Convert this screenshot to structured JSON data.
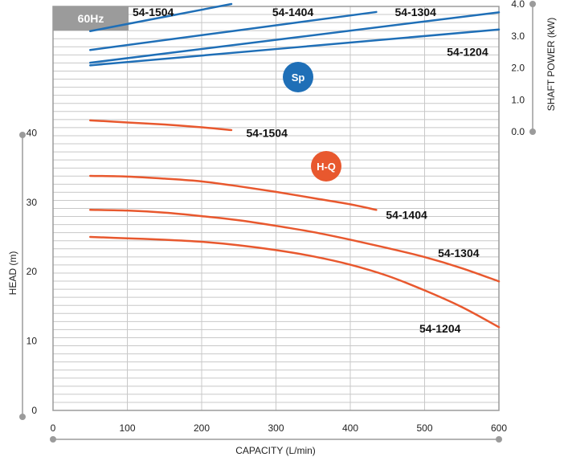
{
  "chart_data": {
    "type": "line",
    "frequency_label": "60Hz",
    "xlabel": "CAPACITY (L/min)",
    "ylabel": "HEAD (m)",
    "y2label": "SHAFT POWER (kW)",
    "xlim": [
      0,
      600
    ],
    "ylim": [
      0,
      50
    ],
    "y2lim": [
      0,
      4
    ],
    "x_ticks": [
      "0",
      "100",
      "200",
      "300",
      "400",
      "500",
      "600"
    ],
    "y_ticks": [
      "0",
      "10",
      "20",
      "30",
      "40"
    ],
    "y2_ticks": [
      "0.0",
      "1.0",
      "2.0",
      "3.0",
      "4.0"
    ],
    "grid": true,
    "colors": {
      "hq": "#e8582e",
      "sp": "#1f6fb7",
      "frame": "#9b9b9b",
      "grid": "#c8c8c8"
    },
    "badges": {
      "sp": "Sp",
      "hq": "H-Q"
    },
    "head_series": [
      {
        "name": "54-1504",
        "x": [
          50,
          100,
          150,
          200,
          240
        ],
        "y": [
          41.8,
          41.5,
          41.2,
          40.8,
          40.4
        ]
      },
      {
        "name": "54-1404",
        "x": [
          50,
          100,
          150,
          200,
          250,
          300,
          350,
          400,
          435
        ],
        "y": [
          33.8,
          33.7,
          33.4,
          33.0,
          32.3,
          31.5,
          30.6,
          29.7,
          28.9
        ]
      },
      {
        "name": "54-1304",
        "x": [
          50,
          100,
          150,
          200,
          250,
          300,
          350,
          400,
          450,
          500,
          550,
          600
        ],
        "y": [
          28.9,
          28.8,
          28.5,
          28.0,
          27.4,
          26.6,
          25.7,
          24.6,
          23.4,
          22.1,
          20.5,
          18.6
        ]
      },
      {
        "name": "54-1204",
        "x": [
          50,
          100,
          150,
          200,
          250,
          300,
          350,
          400,
          450,
          500,
          550,
          600
        ],
        "y": [
          25.0,
          24.8,
          24.6,
          24.3,
          23.8,
          23.1,
          22.2,
          21.0,
          19.4,
          17.3,
          14.9,
          12.0
        ]
      }
    ],
    "power_series": [
      {
        "name": "54-1504",
        "x": [
          50,
          240
        ],
        "y": [
          3.15,
          4.0
        ]
      },
      {
        "name": "54-1404",
        "x": [
          50,
          435
        ],
        "y": [
          2.56,
          3.75
        ]
      },
      {
        "name": "54-1304",
        "x": [
          50,
          600
        ],
        "y": [
          2.16,
          3.74
        ]
      },
      {
        "name": "54-1204",
        "x": [
          50,
          600
        ],
        "y": [
          2.08,
          3.2
        ]
      }
    ],
    "labels": {
      "power": [
        {
          "text": "54-1504",
          "x": 107,
          "y": 3.75
        },
        {
          "text": "54-1404",
          "x": 295,
          "y": 3.75
        },
        {
          "text": "54-1304",
          "x": 460,
          "y": 3.75
        },
        {
          "text": "54-1204",
          "x": 530,
          "y": 2.5
        }
      ],
      "head": [
        {
          "text": "54-1504",
          "x": 260,
          "y": 40.0
        },
        {
          "text": "54-1404",
          "x": 448,
          "y": 28.2
        },
        {
          "text": "54-1304",
          "x": 518,
          "y": 22.7
        },
        {
          "text": "54-1204",
          "x": 493,
          "y": 11.8
        }
      ]
    }
  }
}
